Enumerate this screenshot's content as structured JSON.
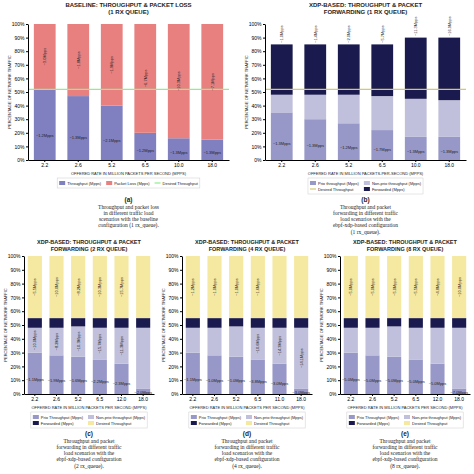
{
  "chart_data": [
    {
      "type": "bar",
      "stacked": true,
      "legend": "bottom",
      "title": "BASELINE: THROUGHPUT & PACKET LOSS\n(1 RX QUEUE)",
      "x_label": "OFFERED RATE IN MILLION PACKETS PER SECOND (MPPS)",
      "y_label": "PERCENTAGE OF NETWORK TRAFFIC",
      "categories": [
        "2.2",
        "2.6",
        "5.2",
        "6.5",
        "10.0",
        "18.0"
      ],
      "series": [
        {
          "name": "Throughput (Mpps)",
          "color": "#8080C0",
          "values": [
            0.52,
            0.47,
            0.4,
            0.2,
            0.16,
            0.15
          ],
          "value_labels": [
            "~1.2Mpps",
            "~1.3Mpps",
            "~2.1Mpps",
            "~1.2Mpps",
            "~1.3Mpps",
            "~1.3Mpps"
          ]
        },
        {
          "name": "Packet Loss (Mpps)",
          "color": "#E88080",
          "values": [
            0.48,
            0.53,
            0.6,
            0.8,
            0.84,
            0.85
          ],
          "value_labels": [
            "~3.0Mpps",
            "~1.8Mpps",
            "~1.9Mpps",
            "~6.7Mpps",
            "~10.3Mpps",
            "~7.1Mpps"
          ]
        },
        {
          "name": "Desired Throughput",
          "type": "hline",
          "color": "#90EE90",
          "value": 0.52
        }
      ],
      "ylim": [
        0,
        1
      ],
      "yticks": [
        {
          "value": 0,
          "label": "0%"
        },
        {
          "value": 0.1,
          "label": "10%"
        },
        {
          "value": 0.2,
          "label": "20%"
        },
        {
          "value": 0.3,
          "label": "30%"
        },
        {
          "value": 0.4,
          "label": "40%"
        },
        {
          "value": 0.5,
          "label": "50%"
        },
        {
          "value": 0.6,
          "label": "60%"
        },
        {
          "value": 0.7,
          "label": "70%"
        },
        {
          "value": 0.8,
          "label": "80%"
        },
        {
          "value": 0.9,
          "label": "90%"
        },
        {
          "value": 1,
          "label": "100%"
        }
      ],
      "annotations": [
        "(a)",
        "Throughput and packet loss\nin different traffic load\nscenarios with the baseline\nconfiguration (1 rx_queue)."
      ]
    },
    {
      "type": "bar",
      "stacked": true,
      "legend": "bottom",
      "title": "XDP-BASED: THROUGHPUT & PACKET\nFORWARDING (1 RX QUEUE)",
      "x_label": "OFFERED RATE IN MILLION PACKETS-PER-SECOND (MPPS)",
      "y_label": "PERCENTAGE OF NETWORK TRAFFIC",
      "categories": [
        "2.2",
        "2.6",
        "5.2",
        "6.5",
        "10.0",
        "18.0"
      ],
      "series": [
        {
          "name": "Prio throughput (Mpps)",
          "color": "#9898C8",
          "values": [
            0.35,
            0.3,
            0.27,
            0.22,
            0.17,
            0.17
          ],
          "value_labels": [
            "~1.3Mpps",
            "~1.3Mpps",
            "~1.2Mpps",
            "~1.7Mpps",
            "~1.3Mpps",
            "~1.3Mpps"
          ]
        },
        {
          "name": "Non-prio throughput (Mpps)",
          "color": "#C0C0DC",
          "values": [
            0.13,
            0.18,
            0.21,
            0.25,
            0.28,
            0.27
          ]
        },
        {
          "name": "Desired Throughput",
          "type": "hline",
          "color": "#D4C870",
          "value": 0.52
        },
        {
          "name": "Forwarded (Mpps)",
          "color": "#1a1a4e",
          "values": [
            0.37,
            0.37,
            0.37,
            0.38,
            0.45,
            0.46
          ],
          "value_labels": [
            "~1.0Mpps",
            "~1.4Mpps",
            "~2.0Mpps",
            "~5.7Mpps",
            "~11.3Mpps",
            "~16.9Mpps"
          ]
        }
      ],
      "ylim": [
        0,
        1
      ],
      "yticks": [
        {
          "value": 0,
          "label": "0%"
        },
        {
          "value": 0.1,
          "label": "10%"
        },
        {
          "value": 0.2,
          "label": "20%"
        },
        {
          "value": 0.3,
          "label": "30%"
        },
        {
          "value": 0.4,
          "label": "40%"
        },
        {
          "value": 0.5,
          "label": "50%"
        },
        {
          "value": 0.6,
          "label": "60%"
        },
        {
          "value": 0.7,
          "label": "70%"
        },
        {
          "value": 0.8,
          "label": "80%"
        },
        {
          "value": 0.9,
          "label": "90%"
        },
        {
          "value": 1,
          "label": "100%"
        }
      ],
      "annotations": [
        "(b)",
        "Throughput and packet\nforwarding in different traffic\nload scenarios with the\nebpf-xdp-based configuration\n(1 rx_queue)."
      ]
    },
    {
      "type": "bar",
      "stacked": true,
      "legend": "bottom",
      "title": "XDP-BASED: THROUGHPUT & PACKET\nFORWARDING (2 RX QUEUE)",
      "x_label": "OFFERED RATE IN MILLION PACKETS PER SECOND (MPPS)",
      "y_label": "PERCENTAGE OF NETWORK TRAFFIC",
      "categories": [
        "2.2",
        "2.6",
        "5.2",
        "6.5",
        "12.0",
        "18.0"
      ],
      "series": [
        {
          "name": "Prio Throughput (Mpps)",
          "color": "#9898C8",
          "values": [
            0.3,
            0.28,
            0.27,
            0.25,
            0.22,
            0.04
          ],
          "value_labels": [
            "~1.1Mpps",
            "~1.9Mpps",
            "~1.6Mpps",
            "~2.2Mpps",
            "~2.3Mpps",
            "~2.0Mpps"
          ]
        },
        {
          "name": "Non-prio throughput (Mpps)",
          "color": "#C0C0DC",
          "values": [
            0.18,
            0.2,
            0.22,
            0.23,
            0.26,
            0.44
          ],
          "value_labels": [
            "~10.0Mpps",
            "~8.2Mpps",
            "~10.3Mpps",
            "~15.7Mpps",
            "~11.3Mpps",
            null
          ]
        },
        {
          "name": "Forwarded (Mpps)",
          "color": "#1a1a4e",
          "values": [
            0.07,
            0.07,
            0.06,
            0.07,
            0.07,
            0.07
          ]
        },
        {
          "name": "Desired Throughput",
          "color": "#F5E8A0",
          "values": [
            0.45,
            0.45,
            0.45,
            0.45,
            0.45,
            0.45
          ],
          "value_labels": [
            "~5.5Mpps",
            "~10.0Mpps",
            "~8.2Mpps",
            "~10.3Mpps",
            "~15.7Mpps",
            null
          ]
        }
      ],
      "ylim": [
        0,
        1
      ],
      "yticks": [
        {
          "value": 0,
          "label": "0%"
        },
        {
          "value": 0.1,
          "label": "10%"
        },
        {
          "value": 0.2,
          "label": "20%"
        },
        {
          "value": 0.3,
          "label": "30%"
        },
        {
          "value": 0.4,
          "label": "40%"
        },
        {
          "value": 0.5,
          "label": "50%"
        },
        {
          "value": 0.6,
          "label": "60%"
        },
        {
          "value": 0.7,
          "label": "70%"
        },
        {
          "value": 0.8,
          "label": "80%"
        },
        {
          "value": 0.9,
          "label": "90%"
        },
        {
          "value": 1,
          "label": "100%"
        }
      ],
      "annotations": [
        "(c)",
        "Throughput and packet\nforwarding in different traffic\nload scenarios with the\nebpf-xdp-based configuration\n(2 rx_queue)."
      ]
    },
    {
      "type": "bar",
      "stacked": true,
      "legend": "bottom",
      "title": "XDP-BASED: THROUGHPUT & PACKET\nFORWARDING (4 RX QUEUE)",
      "x_label": "OFFERED RATE IN MILLION PACKETS PER SECOND (MPPS)",
      "y_label": "PERCENTAGE OF NETWORK TRAFFIC",
      "categories": [
        "2.2",
        "2.6",
        "5.2",
        "6.5",
        "11.0",
        "18.0"
      ],
      "series": [
        {
          "name": "Prio Throughput (Mpps)",
          "color": "#9898C8",
          "values": [
            0.3,
            0.28,
            0.27,
            0.25,
            0.22,
            0.04
          ],
          "value_labels": [
            "~1.1Mpps",
            "~1.0Mpps",
            "~1.0Mpps",
            "~3.8Mpps",
            "~3.0Mpps",
            "~3.0Mpps"
          ]
        },
        {
          "name": "Non-prio throughput (Mpps)",
          "color": "#C0C0DC",
          "values": [
            0.18,
            0.2,
            0.22,
            0.23,
            0.26,
            0.44
          ],
          "value_labels": [
            null,
            null,
            null,
            "~10.6Mpps",
            "~14.3Mpps",
            "~14.1Mpps"
          ]
        },
        {
          "name": "Forwarded (Mpps)",
          "color": "#1a1a4e",
          "values": [
            0.07,
            0.07,
            0.06,
            0.07,
            0.07,
            0.07
          ]
        },
        {
          "name": "Desired Throughput",
          "color": "#F5E8A0",
          "values": [
            0.45,
            0.45,
            0.45,
            0.45,
            0.45,
            0.45
          ],
          "value_labels": [
            "~1.2Mpps",
            "~1.0Mpps",
            "~1.0Mpps",
            "~1.6Mpps",
            null,
            null
          ]
        }
      ],
      "ylim": [
        0,
        1
      ],
      "yticks": [
        {
          "value": 0,
          "label": "0%"
        },
        {
          "value": 0.1,
          "label": "10%"
        },
        {
          "value": 0.2,
          "label": "20%"
        },
        {
          "value": 0.3,
          "label": "30%"
        },
        {
          "value": 0.4,
          "label": "40%"
        },
        {
          "value": 0.5,
          "label": "50%"
        },
        {
          "value": 0.6,
          "label": "60%"
        },
        {
          "value": 0.7,
          "label": "70%"
        },
        {
          "value": 0.8,
          "label": "80%"
        },
        {
          "value": 0.9,
          "label": "90%"
        },
        {
          "value": 1,
          "label": "100%"
        }
      ],
      "annotations": [
        "(d)",
        "Throughput and packet\nforwarding in different traffic\nload scenarios with the\nebpf-xdp-based configuration\n(4 rx_queue)."
      ]
    },
    {
      "type": "bar",
      "stacked": true,
      "legend": "bottom",
      "title": "XDP-BASED: THROUGHPUT & PACKET\nFORWARDING (8 RX QUEUE)",
      "x_label": "OFFERED RATE IN MILLION PACKETS PER SECOND (MPPS)",
      "y_label": "PERCENTAGE OF NETWORK TRAFFIC",
      "categories": [
        "2.2",
        "2.6",
        "5.2",
        "6.5",
        "12.0",
        "18.0"
      ],
      "series": [
        {
          "name": "Prio Throughput (Mpps)",
          "color": "#9898C8",
          "values": [
            0.3,
            0.28,
            0.27,
            0.25,
            0.22,
            0.04
          ],
          "value_labels": [
            "~5.0Mpps",
            "~5.0Mpps",
            "~5.0Mpps",
            "~5.0Mpps",
            "~5.0Mpps",
            "~7.0Mpps"
          ]
        },
        {
          "name": "Non-prio throughput (Mpps)",
          "color": "#C0C0DC",
          "values": [
            0.18,
            0.2,
            0.22,
            0.23,
            0.26,
            0.44
          ]
        },
        {
          "name": "Forwarded (Mpps)",
          "color": "#1a1a4e",
          "values": [
            0.07,
            0.07,
            0.06,
            0.07,
            0.07,
            0.07
          ]
        },
        {
          "name": "Desired Throughput",
          "color": "#F5E8A0",
          "values": [
            0.45,
            0.45,
            0.45,
            0.45,
            0.45,
            0.45
          ],
          "value_labels": [
            "~5.0Mpps",
            "~5.0Mpps",
            "~5.0Mpps",
            "~5.5Mpps",
            "~4.8Mpps",
            "~10.0Mpps"
          ]
        }
      ],
      "ylim": [
        0,
        1
      ],
      "yticks": [
        {
          "value": 0,
          "label": "0%"
        },
        {
          "value": 0.1,
          "label": "10%"
        },
        {
          "value": 0.2,
          "label": "20%"
        },
        {
          "value": 0.3,
          "label": "30%"
        },
        {
          "value": 0.4,
          "label": "40%"
        },
        {
          "value": 0.5,
          "label": "50%"
        },
        {
          "value": 0.6,
          "label": "60%"
        },
        {
          "value": 0.7,
          "label": "70%"
        },
        {
          "value": 0.8,
          "label": "80%"
        },
        {
          "value": 0.9,
          "label": "90%"
        },
        {
          "value": 1,
          "label": "100%"
        }
      ],
      "annotations": [
        "(e)",
        "Throughput and packet\nforwarding in different traffic\nload scenarios with the\nebpf-xdp-based configuration\n(8 rx_queue)."
      ]
    }
  ]
}
